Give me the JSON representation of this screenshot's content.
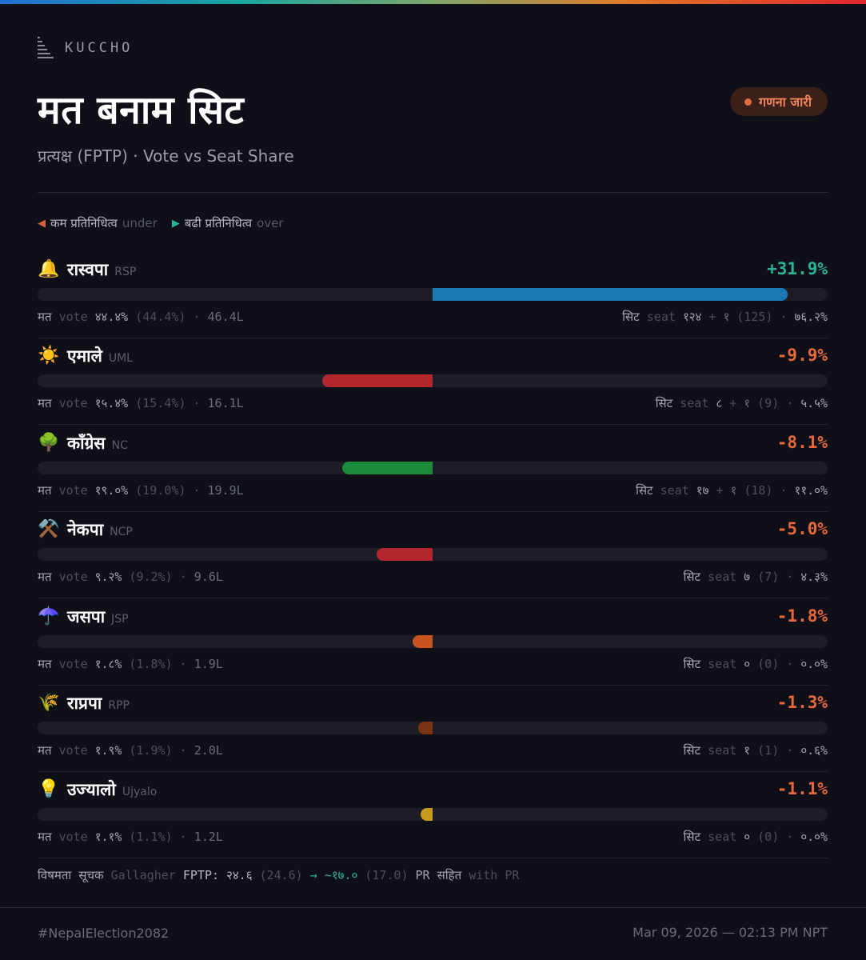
{
  "brand": {
    "label": "KUCCHO",
    "icon": "bars-logo-icon"
  },
  "header": {
    "title": "मत बनाम सिट",
    "subtitle": "प्रत्यक्ष (FPTP) · Vote vs Seat Share",
    "status_badge": "गणना जारी",
    "status_color": "#e36a3d"
  },
  "legend": {
    "under_label": "कम प्रतिनिधित्व",
    "under_sub": "under",
    "under_color": "#d9603a",
    "over_label": "बढी प्रतिनिधित्व",
    "over_sub": "over",
    "over_color": "#2bb39a"
  },
  "labels": {
    "vote_np": "मत",
    "vote_en": "vote",
    "seat_np": "सिट",
    "seat_en": "seat",
    "sep": "·",
    "plus": "+"
  },
  "parties": [
    {
      "icon": "🔔",
      "icon_name": "bell-icon",
      "name": "रास्वपा",
      "abbr": "RSP",
      "diff": "+31.9%",
      "diff_value": 31.9,
      "diff_color": "#2bb39a",
      "bar_color": "#1b79b3",
      "vote_pct": "४४.४%",
      "vote_pct_en": "(44.4%)",
      "vote_count": "46.4L",
      "seats_fptp": "१२४",
      "seats_pr": "१",
      "seats_total": "(125)",
      "seat_pct": "७६.२%"
    },
    {
      "icon": "☀️",
      "icon_name": "sun-icon",
      "name": "एमाले",
      "abbr": "UML",
      "diff": "-9.9%",
      "diff_value": -9.9,
      "diff_color": "#e8683c",
      "bar_color": "#b3262d",
      "vote_pct": "१५.४%",
      "vote_pct_en": "(15.4%)",
      "vote_count": "16.1L",
      "seats_fptp": "८",
      "seats_pr": "१",
      "seats_total": "(9)",
      "seat_pct": "५.५%"
    },
    {
      "icon": "🌳",
      "icon_name": "tree-icon",
      "name": "काँग्रेस",
      "abbr": "NC",
      "diff": "-8.1%",
      "diff_value": -8.1,
      "diff_color": "#e8683c",
      "bar_color": "#1c8a3c",
      "vote_pct": "१९.०%",
      "vote_pct_en": "(19.0%)",
      "vote_count": "19.9L",
      "seats_fptp": "१७",
      "seats_pr": "१",
      "seats_total": "(18)",
      "seat_pct": "११.०%"
    },
    {
      "icon": "⚒️",
      "icon_name": "hammer-pick-icon",
      "name": "नेकपा",
      "abbr": "NCP",
      "diff": "-5.0%",
      "diff_value": -5.0,
      "diff_color": "#e8683c",
      "bar_color": "#b3262d",
      "vote_pct": "९.२%",
      "vote_pct_en": "(9.2%)",
      "vote_count": "9.6L",
      "seats_fptp": "७",
      "seats_pr": "",
      "seats_total": "(7)",
      "seat_pct": "४.३%"
    },
    {
      "icon": "☂️",
      "icon_name": "umbrella-icon",
      "name": "जसपा",
      "abbr": "JSP",
      "diff": "-1.8%",
      "diff_value": -1.8,
      "diff_color": "#e8683c",
      "bar_color": "#c7541e",
      "vote_pct": "१.८%",
      "vote_pct_en": "(1.8%)",
      "vote_count": "1.9L",
      "seats_fptp": "०",
      "seats_pr": "",
      "seats_total": "(0)",
      "seat_pct": "०.०%"
    },
    {
      "icon": "🌾",
      "icon_name": "wheat-icon",
      "name": "राप्रपा",
      "abbr": "RPP",
      "diff": "-1.3%",
      "diff_value": -1.3,
      "diff_color": "#e8683c",
      "bar_color": "#7a3413",
      "vote_pct": "१.९%",
      "vote_pct_en": "(1.9%)",
      "vote_count": "2.0L",
      "seats_fptp": "१",
      "seats_pr": "",
      "seats_total": "(1)",
      "seat_pct": "०.६%"
    },
    {
      "icon": "💡",
      "icon_name": "lightbulb-icon",
      "name": "उज्यालो",
      "abbr": "Ujyalo",
      "diff": "-1.1%",
      "diff_value": -1.1,
      "diff_color": "#e8683c",
      "bar_color": "#c99a1a",
      "vote_pct": "१.१%",
      "vote_pct_en": "(1.1%)",
      "vote_count": "1.2L",
      "seats_fptp": "०",
      "seats_pr": "",
      "seats_total": "(0)",
      "seat_pct": "०.०%"
    }
  ],
  "gallagher": {
    "label_np": "विषमता सूचक",
    "label_en": "Gallagher",
    "fptp_label": "FPTP:",
    "fptp_np": "२४.६",
    "fptp_en": "(24.6)",
    "arrow": "→",
    "pr_np": "~१७.०",
    "pr_en": "(17.0)",
    "pr_label_np": "PR सहित",
    "pr_label_en": "with PR"
  },
  "footer": {
    "hashtag": "#NepalElection2082",
    "timestamp": "Mar 09, 2026 — 02:13 PM NPT"
  }
}
